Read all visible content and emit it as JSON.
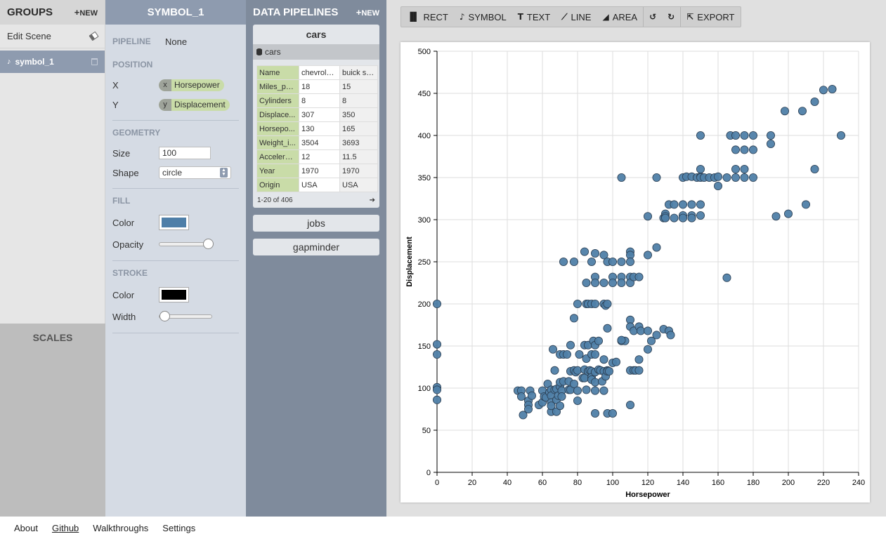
{
  "groups": {
    "title": "GROUPS",
    "new_label": "NEW",
    "edit_scene": "Edit Scene",
    "items": [
      {
        "label": "symbol_1"
      }
    ],
    "scales_label": "SCALES"
  },
  "inspector": {
    "title": "SYMBOL_1",
    "pipeline_label": "PIPELINE",
    "pipeline_value": "None",
    "position_label": "POSITION",
    "x_label": "X",
    "x_channel": "x",
    "x_field": "Horsepower",
    "y_label": "Y",
    "y_channel": "y",
    "y_field": "Displacement",
    "geometry_label": "GEOMETRY",
    "size_label": "Size",
    "size_value": "100",
    "shape_label": "Shape",
    "shape_value": "circle",
    "fill_label": "FILL",
    "fill_color_label": "Color",
    "fill_color": "#4f7fa8",
    "opacity_label": "Opacity",
    "opacity_value": 1,
    "stroke_label": "STROKE",
    "stroke_color_label": "Color",
    "stroke_color": "#000000",
    "width_label": "Width",
    "width_value": 0
  },
  "pipelines": {
    "title": "DATA PIPELINES",
    "new_label": "NEW",
    "items": [
      {
        "name": "cars",
        "source": "cars",
        "columns": [
          "chevrolet...",
          "buick sky..."
        ],
        "rows": [
          {
            "field": "Name",
            "v1": "chevrolet...",
            "v2": "buick sky..."
          },
          {
            "field": "Miles_per...",
            "v1": "18",
            "v2": "15"
          },
          {
            "field": "Cylinders",
            "v1": "8",
            "v2": "8"
          },
          {
            "field": "Displace...",
            "v1": "307",
            "v2": "350"
          },
          {
            "field": "Horsepo...",
            "v1": "130",
            "v2": "165"
          },
          {
            "field": "Weight_i...",
            "v1": "3504",
            "v2": "3693"
          },
          {
            "field": "Accelerat...",
            "v1": "12",
            "v2": "11.5"
          },
          {
            "field": "Year",
            "v1": "1970",
            "v2": "1970"
          },
          {
            "field": "Origin",
            "v1": "USA",
            "v2": "USA"
          }
        ],
        "pager": "1-20 of 406"
      },
      {
        "name": "jobs"
      },
      {
        "name": "gapminder"
      }
    ]
  },
  "toolbar": {
    "rect": "RECT",
    "symbol": "SYMBOL",
    "text": "TEXT",
    "line": "LINE",
    "area": "AREA",
    "export": "EXPORT"
  },
  "footer": {
    "about": "About",
    "github": "Github",
    "walkthroughs": "Walkthroughs",
    "settings": "Settings"
  },
  "chart_data": {
    "type": "scatter",
    "xlabel": "Horsepower",
    "ylabel": "Displacement",
    "xlim": [
      0,
      240
    ],
    "ylim": [
      0,
      500
    ],
    "xticks": [
      0,
      20,
      40,
      60,
      80,
      100,
      120,
      140,
      160,
      180,
      200,
      220,
      240
    ],
    "yticks": [
      0,
      50,
      100,
      150,
      200,
      250,
      300,
      350,
      400,
      450,
      500
    ],
    "grid": true,
    "color": "#4f7fa8",
    "points": [
      [
        0,
        200
      ],
      [
        0,
        152
      ],
      [
        0,
        140
      ],
      [
        0,
        101
      ],
      [
        0,
        98
      ],
      [
        0,
        86
      ],
      [
        46,
        97
      ],
      [
        48,
        97
      ],
      [
        48,
        90
      ],
      [
        49,
        68
      ],
      [
        52,
        85
      ],
      [
        52,
        80
      ],
      [
        52,
        75
      ],
      [
        53,
        97
      ],
      [
        54,
        91
      ],
      [
        58,
        80
      ],
      [
        60,
        97
      ],
      [
        60,
        83
      ],
      [
        61,
        90
      ],
      [
        62,
        89
      ],
      [
        63,
        105
      ],
      [
        64,
        95
      ],
      [
        65,
        72
      ],
      [
        65,
        98
      ],
      [
        65,
        91
      ],
      [
        65,
        83
      ],
      [
        65,
        79
      ],
      [
        66,
        146
      ],
      [
        67,
        98
      ],
      [
        67,
        121
      ],
      [
        68,
        99
      ],
      [
        68,
        72
      ],
      [
        68,
        86
      ],
      [
        69,
        91
      ],
      [
        70,
        102
      ],
      [
        70,
        107
      ],
      [
        70,
        140
      ],
      [
        70,
        79
      ],
      [
        71,
        97
      ],
      [
        71,
        90
      ],
      [
        72,
        108
      ],
      [
        72,
        140
      ],
      [
        74,
        140
      ],
      [
        75,
        98
      ],
      [
        75,
        108
      ],
      [
        76,
        98
      ],
      [
        76,
        120
      ],
      [
        76,
        151
      ],
      [
        78,
        121
      ],
      [
        78,
        105
      ],
      [
        79,
        119
      ],
      [
        80,
        121
      ],
      [
        80,
        97
      ],
      [
        80,
        85
      ],
      [
        81,
        140
      ],
      [
        83,
        112
      ],
      [
        84,
        151
      ],
      [
        84,
        122
      ],
      [
        84,
        112
      ],
      [
        85,
        135
      ],
      [
        85,
        98
      ],
      [
        86,
        151
      ],
      [
        86,
        120
      ],
      [
        87,
        121
      ],
      [
        88,
        140
      ],
      [
        88,
        120
      ],
      [
        88,
        113
      ],
      [
        88,
        110
      ],
      [
        89,
        156
      ],
      [
        90,
        151
      ],
      [
        90,
        140
      ],
      [
        90,
        119
      ],
      [
        90,
        107
      ],
      [
        90,
        97
      ],
      [
        92,
        156
      ],
      [
        92,
        122
      ],
      [
        93,
        121
      ],
      [
        94,
        108
      ],
      [
        95,
        134
      ],
      [
        95,
        120
      ],
      [
        95,
        97
      ],
      [
        96,
        114
      ],
      [
        97,
        121
      ],
      [
        97,
        120
      ],
      [
        98,
        120
      ],
      [
        100,
        130
      ],
      [
        102,
        131
      ],
      [
        105,
        156
      ],
      [
        107,
        156
      ],
      [
        110,
        121
      ],
      [
        112,
        121
      ],
      [
        113,
        121
      ],
      [
        115,
        134
      ],
      [
        115,
        121
      ],
      [
        120,
        146
      ],
      [
        122,
        156
      ],
      [
        125,
        163
      ],
      [
        129,
        170
      ],
      [
        132,
        168
      ],
      [
        133,
        163
      ],
      [
        90,
        70
      ],
      [
        97,
        70
      ],
      [
        100,
        70
      ],
      [
        110,
        80
      ],
      [
        78,
        183
      ],
      [
        80,
        200
      ],
      [
        85,
        200
      ],
      [
        86,
        200
      ],
      [
        88,
        200
      ],
      [
        90,
        200
      ],
      [
        95,
        200
      ],
      [
        96,
        198
      ],
      [
        97,
        200
      ],
      [
        97,
        171
      ],
      [
        105,
        157
      ],
      [
        110,
        181
      ],
      [
        110,
        173
      ],
      [
        112,
        168
      ],
      [
        115,
        173
      ],
      [
        116,
        168
      ],
      [
        120,
        168
      ],
      [
        72,
        250
      ],
      [
        78,
        250
      ],
      [
        84,
        262
      ],
      [
        85,
        225
      ],
      [
        88,
        250
      ],
      [
        90,
        260
      ],
      [
        90,
        232
      ],
      [
        90,
        225
      ],
      [
        95,
        258
      ],
      [
        95,
        225
      ],
      [
        97,
        250
      ],
      [
        100,
        250
      ],
      [
        100,
        232
      ],
      [
        100,
        225
      ],
      [
        105,
        250
      ],
      [
        105,
        232
      ],
      [
        105,
        225
      ],
      [
        110,
        262
      ],
      [
        110,
        258
      ],
      [
        110,
        250
      ],
      [
        110,
        232
      ],
      [
        110,
        225
      ],
      [
        112,
        232
      ],
      [
        115,
        232
      ],
      [
        120,
        258
      ],
      [
        125,
        267
      ],
      [
        105,
        350
      ],
      [
        125,
        350
      ],
      [
        120,
        304
      ],
      [
        129,
        302
      ],
      [
        130,
        307
      ],
      [
        130,
        304
      ],
      [
        130,
        302
      ],
      [
        132,
        318
      ],
      [
        135,
        302
      ],
      [
        135,
        318
      ],
      [
        140,
        350
      ],
      [
        140,
        318
      ],
      [
        140,
        305
      ],
      [
        140,
        302
      ],
      [
        142,
        351
      ],
      [
        145,
        351
      ],
      [
        145,
        318
      ],
      [
        145,
        305
      ],
      [
        145,
        302
      ],
      [
        148,
        350
      ],
      [
        150,
        400
      ],
      [
        150,
        360
      ],
      [
        150,
        351
      ],
      [
        150,
        350
      ],
      [
        150,
        318
      ],
      [
        150,
        305
      ],
      [
        152,
        350
      ],
      [
        155,
        350
      ],
      [
        158,
        350
      ],
      [
        160,
        351
      ],
      [
        160,
        340
      ],
      [
        165,
        350
      ],
      [
        165,
        231
      ],
      [
        167,
        400
      ],
      [
        170,
        400
      ],
      [
        170,
        383
      ],
      [
        170,
        360
      ],
      [
        170,
        350
      ],
      [
        175,
        400
      ],
      [
        175,
        383
      ],
      [
        175,
        360
      ],
      [
        175,
        350
      ],
      [
        180,
        400
      ],
      [
        180,
        383
      ],
      [
        180,
        350
      ],
      [
        190,
        400
      ],
      [
        190,
        390
      ],
      [
        193,
        304
      ],
      [
        198,
        429
      ],
      [
        200,
        307
      ],
      [
        208,
        429
      ],
      [
        210,
        318
      ],
      [
        215,
        440
      ],
      [
        215,
        360
      ],
      [
        220,
        454
      ],
      [
        225,
        455
      ],
      [
        230,
        400
      ]
    ]
  }
}
